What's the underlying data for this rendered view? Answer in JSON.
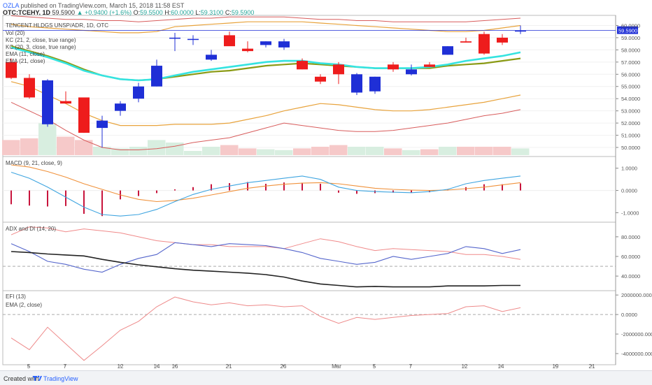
{
  "header": {
    "author": "OZLA",
    "published": "published on TradingView.com, March 15, 2018 11:58 EST",
    "symbol": "OTC:TCEHY, 1D",
    "last": "59.5900",
    "change": "+0.9400 (+1.6%)",
    "open_label": "O:",
    "open": "59.5500",
    "high_label": "H:",
    "high": "60.0000",
    "low_label": "L:",
    "low": "59.3100",
    "close_label": "C:",
    "close": "59.5900"
  },
  "footer": {
    "created": "Created with",
    "brand": "TradingView"
  },
  "colors": {
    "up": "#1f2fd6",
    "down": "#ee1c1c",
    "ema11": "#35e3e0",
    "ema21": "#8a9a14",
    "kc_a": "#e8a33c",
    "kc_b": "#d85c5c",
    "vol_up": "#d8eee0",
    "vol_down": "#f6c9c9",
    "macd": "#3fa5e0",
    "signal": "#f0923c",
    "hist": "#c8143c",
    "adx": "#222222",
    "di_plus": "#5566cc",
    "di_minus": "#f08a8a",
    "efi": "#ee8a8a"
  },
  "chart_data": [
    {
      "type": "candlestick",
      "title": "TENCENT HLDGS UNSP/ADR, 1D, OTC",
      "legend": [
        "Vol (20)",
        "KC (21, 2, close, true range)",
        "KC (20, 3, close, true range)",
        "EMA (11, close)",
        "EMA (21, close)"
      ],
      "last_price": "59.5900",
      "x_ticks": [
        "5",
        "7",
        "12",
        "14",
        "16",
        "21",
        "26",
        "Mar",
        "5",
        "7",
        "12",
        "14",
        "19",
        "21"
      ],
      "y_ticks": [
        "60.0000",
        "59.0000",
        "58.0000",
        "57.0000",
        "56.0000",
        "55.0000",
        "54.0000",
        "53.0000",
        "52.0000",
        "51.0000",
        "50.0000"
      ],
      "ylim": [
        49.6,
        60.6
      ],
      "candles": [
        {
          "o": 57.0,
          "h": 57.3,
          "l": 55.6,
          "c": 55.7
        },
        {
          "o": 55.7,
          "h": 56.0,
          "l": 54.0,
          "c": 54.1
        },
        {
          "o": 51.9,
          "h": 55.6,
          "l": 51.7,
          "c": 55.5
        },
        {
          "o": 53.8,
          "h": 54.6,
          "l": 53.6,
          "c": 53.6
        },
        {
          "o": 54.1,
          "h": 54.1,
          "l": 51.2,
          "c": 51.2
        },
        {
          "o": 51.6,
          "h": 52.6,
          "l": 50.0,
          "c": 52.2
        },
        {
          "o": 53.0,
          "h": 53.8,
          "l": 52.6,
          "c": 53.6
        },
        {
          "o": 54.0,
          "h": 55.3,
          "l": 53.7,
          "c": 55.0
        },
        {
          "o": 55.0,
          "h": 57.2,
          "l": 55.0,
          "c": 56.7
        },
        {
          "o": 59.0,
          "h": 59.4,
          "l": 57.9,
          "c": 59.0
        },
        {
          "o": 58.9,
          "h": 59.2,
          "l": 58.4,
          "c": 58.9
        },
        {
          "o": 57.2,
          "h": 58.0,
          "l": 57.1,
          "c": 57.6
        },
        {
          "o": 59.2,
          "h": 59.5,
          "l": 58.4,
          "c": 58.3
        },
        {
          "o": 58.1,
          "h": 58.7,
          "l": 57.8,
          "c": 57.9
        },
        {
          "o": 58.4,
          "h": 58.7,
          "l": 58.2,
          "c": 58.7
        },
        {
          "o": 58.2,
          "h": 58.9,
          "l": 58.0,
          "c": 58.7
        },
        {
          "o": 57.1,
          "h": 57.3,
          "l": 56.4,
          "c": 56.4
        },
        {
          "o": 55.8,
          "h": 56.0,
          "l": 55.2,
          "c": 55.4
        },
        {
          "o": 56.8,
          "h": 57.0,
          "l": 55.2,
          "c": 56.0
        },
        {
          "o": 54.5,
          "h": 56.1,
          "l": 54.3,
          "c": 56.0
        },
        {
          "o": 54.6,
          "h": 55.8,
          "l": 54.4,
          "c": 55.8
        },
        {
          "o": 56.8,
          "h": 57.0,
          "l": 56.2,
          "c": 56.4
        },
        {
          "o": 56.0,
          "h": 56.8,
          "l": 55.9,
          "c": 56.4
        },
        {
          "o": 56.8,
          "h": 57.0,
          "l": 56.6,
          "c": 56.6
        },
        {
          "o": 57.6,
          "h": 58.3,
          "l": 57.6,
          "c": 58.3
        },
        {
          "o": 58.7,
          "h": 59.0,
          "l": 58.6,
          "c": 58.6
        },
        {
          "o": 59.3,
          "h": 59.5,
          "l": 57.6,
          "c": 57.7
        },
        {
          "o": 59.0,
          "h": 59.3,
          "l": 58.4,
          "c": 58.6
        },
        {
          "o": 59.5,
          "h": 60.0,
          "l": 59.3,
          "c": 59.6
        }
      ],
      "volume": [
        0.18,
        0.2,
        0.38,
        0.22,
        0.18,
        0.1,
        0.08,
        0.1,
        0.18,
        0.15,
        0.05,
        0.1,
        0.12,
        0.08,
        0.07,
        0.06,
        0.08,
        0.1,
        0.12,
        0.1,
        0.1,
        0.08,
        0.06,
        0.07,
        0.1,
        0.1,
        0.1,
        0.1,
        0.08
      ],
      "ema11": [
        58.2,
        57.8,
        57.4,
        56.9,
        56.3,
        55.9,
        55.6,
        55.5,
        55.6,
        55.9,
        56.2,
        56.4,
        56.6,
        56.8,
        57.0,
        57.1,
        57.1,
        56.9,
        56.8,
        56.6,
        56.5,
        56.5,
        56.5,
        56.6,
        56.8,
        57.1,
        57.3,
        57.5,
        57.8
      ],
      "ema21": [
        58.3,
        57.9,
        57.5,
        57.0,
        56.4,
        55.9,
        55.6,
        55.5,
        55.6,
        55.8,
        56.0,
        56.2,
        56.3,
        56.5,
        56.7,
        56.8,
        56.9,
        56.8,
        56.7,
        56.6,
        56.5,
        56.5,
        56.5,
        56.5,
        56.7,
        56.8,
        56.9,
        57.1,
        57.3
      ],
      "kc_upper": [
        60.1,
        59.9,
        59.8,
        59.7,
        59.6,
        59.5,
        59.4,
        59.4,
        59.5,
        59.9,
        60.0,
        60.1,
        60.2,
        60.3,
        60.3,
        60.3,
        60.3,
        60.2,
        60.1,
        60.0,
        59.9,
        59.8,
        59.7,
        59.6,
        59.5,
        59.5,
        59.6,
        59.8,
        60.0
      ],
      "kc_lower": [
        55.4,
        55.0,
        54.3,
        53.6,
        52.8,
        52.2,
        51.8,
        51.8,
        51.8,
        51.9,
        51.9,
        51.9,
        52.0,
        52.3,
        52.6,
        53.0,
        53.3,
        53.6,
        53.5,
        53.3,
        53.1,
        53.0,
        53.0,
        53.1,
        53.3,
        53.5,
        53.7,
        54.0,
        54.3
      ],
      "kc3_upper": [
        60.8,
        60.7,
        60.6,
        60.5,
        60.5,
        60.4,
        60.4,
        60.3,
        60.4,
        60.5,
        60.6,
        60.6,
        60.7,
        60.7,
        60.7,
        60.7,
        60.6,
        60.5,
        60.5,
        60.4,
        60.4,
        60.3,
        60.3,
        60.3,
        60.3,
        60.3,
        60.4,
        60.5,
        60.6
      ],
      "kc3_lower": [
        53.7,
        53.0,
        52.3,
        51.4,
        50.6,
        50.0,
        49.8,
        49.8,
        49.9,
        50.1,
        50.4,
        50.6,
        50.8,
        51.2,
        51.6,
        52.0,
        51.8,
        51.6,
        51.4,
        51.3,
        51.3,
        51.4,
        51.6,
        51.8,
        52.0,
        52.3,
        52.6,
        52.8,
        53.1
      ]
    },
    {
      "type": "line",
      "title": "MACD (9, 21, close, 9)",
      "y_ticks": [
        "1.0000",
        "0.0000",
        "-1.0000"
      ],
      "ylim": [
        -1.3,
        1.4
      ],
      "macd": [
        0.82,
        0.55,
        0.15,
        -0.3,
        -0.75,
        -1.08,
        -1.15,
        -1.08,
        -0.85,
        -0.5,
        -0.18,
        0.05,
        0.2,
        0.35,
        0.45,
        0.55,
        0.65,
        0.5,
        0.15,
        0.0,
        -0.05,
        -0.08,
        -0.1,
        -0.05,
        0.05,
        0.3,
        0.45,
        0.55,
        0.65
      ],
      "signal": [
        1.15,
        1.05,
        0.85,
        0.6,
        0.3,
        0.05,
        -0.2,
        -0.4,
        -0.5,
        -0.45,
        -0.35,
        -0.2,
        -0.05,
        0.1,
        0.2,
        0.28,
        0.33,
        0.35,
        0.3,
        0.2,
        0.1,
        0.05,
        0.02,
        0.0,
        0.02,
        0.08,
        0.15,
        0.25,
        0.35
      ],
      "histogram": [
        -0.62,
        -0.68,
        -0.72,
        -0.7,
        -1.05,
        -1.15,
        -0.4,
        -0.25,
        -0.12,
        0.05,
        0.15,
        0.28,
        0.33,
        0.38,
        0.3,
        0.36,
        0.35,
        0.3,
        -0.1,
        -0.15,
        -0.12,
        -0.1,
        -0.1,
        -0.08,
        0.06,
        0.15,
        0.28,
        0.28,
        0.32
      ]
    },
    {
      "type": "line",
      "title": "ADX and DI (14, 20)",
      "y_ticks": [
        "80.0000",
        "60.0000",
        "40.0000"
      ],
      "ylim": [
        28,
        92
      ],
      "adx": [
        65.0,
        64.0,
        62.5,
        61.5,
        60.5,
        57.0,
        54.0,
        51.5,
        49.5,
        47.5,
        46.0,
        45.0,
        44.0,
        43.0,
        41.5,
        39.0,
        35.0,
        32.0,
        30.5,
        29.0,
        29.5,
        29.0,
        29.0,
        29.0,
        30.0,
        30.0,
        30.0,
        30.5,
        30.5
      ],
      "di_plus": [
        73,
        65,
        55,
        52,
        47,
        44,
        52,
        58,
        62,
        74,
        72,
        70,
        73,
        72,
        71,
        68,
        64,
        58,
        55,
        52,
        54,
        60,
        57,
        60,
        63,
        70,
        68,
        63,
        67
      ],
      "di_minus": [
        82,
        90,
        89,
        85,
        88,
        86,
        84,
        80,
        76,
        74,
        72,
        72,
        70,
        70,
        70,
        68,
        73,
        78,
        75,
        70,
        66,
        68,
        67,
        66,
        65,
        62,
        62,
        60,
        57
      ]
    },
    {
      "type": "line",
      "title": "EFI (13)",
      "legend": [
        "EMA (2, close)"
      ],
      "y_ticks": [
        "2000000.0000",
        "0.0000",
        "-2000000.0000",
        "-4000000.0000"
      ],
      "ylim": [
        -5000000,
        2300000
      ],
      "efi": [
        -2400000,
        -3600000,
        -1300000,
        -3000000,
        -4700000,
        -3200000,
        -1600000,
        -700000,
        800000,
        1800000,
        1300000,
        1000000,
        1200000,
        900000,
        1000000,
        800000,
        900000,
        -200000,
        -900000,
        -300000,
        -500000,
        -300000,
        -100000,
        0,
        100000,
        800000,
        900000,
        300000,
        700000
      ]
    }
  ]
}
